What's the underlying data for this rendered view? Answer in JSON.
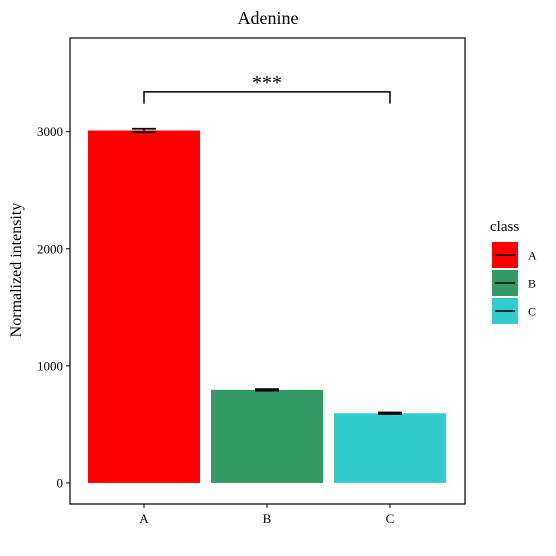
{
  "chart_data": {
    "type": "bar",
    "title": "Adenine",
    "xlabel": "",
    "ylabel": "Normalized intensity",
    "categories": [
      "A",
      "B",
      "C"
    ],
    "values": [
      3010,
      795,
      595
    ],
    "errors": [
      15,
      6,
      6
    ],
    "colors": [
      "#FF0000",
      "#339966",
      "#33CCCC"
    ],
    "yticks": [
      0,
      1000,
      2000,
      3000
    ],
    "ylim": [
      -180,
      3800
    ],
    "grid": false,
    "legend": {
      "title": "class",
      "position": "right",
      "entries": [
        "A",
        "B",
        "C"
      ]
    },
    "annotation": {
      "text": "***",
      "from": "A",
      "to": "C",
      "y": 3340,
      "drop": 100
    }
  }
}
